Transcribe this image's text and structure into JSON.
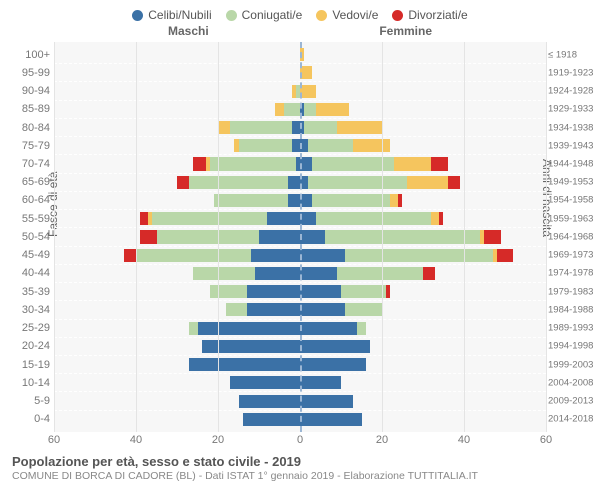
{
  "legend": {
    "items": [
      {
        "label": "Celibi/Nubili",
        "color": "#3b71a6"
      },
      {
        "label": "Coniugati/e",
        "color": "#b9d7a8"
      },
      {
        "label": "Vedovi/e",
        "color": "#f5c55e"
      },
      {
        "label": "Divorziati/e",
        "color": "#d62a28"
      }
    ]
  },
  "headers": {
    "male": "Maschi",
    "female": "Femmine"
  },
  "axis": {
    "left_title": "Fasce di età",
    "right_title": "Anni di nascita",
    "max": 60,
    "ticks": [
      60,
      40,
      20,
      0,
      20,
      40,
      60
    ]
  },
  "colors": {
    "single": "#3b71a6",
    "married": "#b9d7a8",
    "widowed": "#f5c55e",
    "divorced": "#d62a28",
    "plot_bg": "#f7f7f7",
    "grid": "#e4e4e4",
    "row_dash": "#ffffff",
    "center_dash": "#9bb6d4"
  },
  "title": "Popolazione per età, sesso e stato civile - 2019",
  "subtitle": "COMUNE DI BORCA DI CADORE (BL) - Dati ISTAT 1° gennaio 2019 - Elaborazione TUTTITALIA.IT",
  "rows": [
    {
      "age": "100+",
      "birth": "≤ 1918",
      "m": {
        "s": 0,
        "c": 0,
        "w": 0,
        "d": 0
      },
      "f": {
        "s": 0,
        "c": 0,
        "w": 1,
        "d": 0
      }
    },
    {
      "age": "95-99",
      "birth": "1919-1923",
      "m": {
        "s": 0,
        "c": 0,
        "w": 0,
        "d": 0
      },
      "f": {
        "s": 0,
        "c": 0,
        "w": 3,
        "d": 0
      }
    },
    {
      "age": "90-94",
      "birth": "1924-1928",
      "m": {
        "s": 0,
        "c": 1,
        "w": 1,
        "d": 0
      },
      "f": {
        "s": 0,
        "c": 0,
        "w": 4,
        "d": 0
      }
    },
    {
      "age": "85-89",
      "birth": "1929-1933",
      "m": {
        "s": 0,
        "c": 4,
        "w": 2,
        "d": 0
      },
      "f": {
        "s": 1,
        "c": 3,
        "w": 8,
        "d": 0
      }
    },
    {
      "age": "80-84",
      "birth": "1934-1938",
      "m": {
        "s": 2,
        "c": 15,
        "w": 3,
        "d": 0
      },
      "f": {
        "s": 1,
        "c": 8,
        "w": 11,
        "d": 0
      }
    },
    {
      "age": "75-79",
      "birth": "1939-1943",
      "m": {
        "s": 2,
        "c": 13,
        "w": 1,
        "d": 0
      },
      "f": {
        "s": 2,
        "c": 11,
        "w": 9,
        "d": 0
      }
    },
    {
      "age": "70-74",
      "birth": "1944-1948",
      "m": {
        "s": 1,
        "c": 21,
        "w": 1,
        "d": 3
      },
      "f": {
        "s": 3,
        "c": 20,
        "w": 9,
        "d": 4
      }
    },
    {
      "age": "65-69",
      "birth": "1949-1953",
      "m": {
        "s": 3,
        "c": 24,
        "w": 0,
        "d": 3
      },
      "f": {
        "s": 2,
        "c": 24,
        "w": 10,
        "d": 3
      }
    },
    {
      "age": "60-64",
      "birth": "1954-1958",
      "m": {
        "s": 3,
        "c": 18,
        "w": 0,
        "d": 0
      },
      "f": {
        "s": 3,
        "c": 19,
        "w": 2,
        "d": 1
      }
    },
    {
      "age": "55-59",
      "birth": "1959-1963",
      "m": {
        "s": 8,
        "c": 28,
        "w": 1,
        "d": 2
      },
      "f": {
        "s": 4,
        "c": 28,
        "w": 2,
        "d": 1
      }
    },
    {
      "age": "50-54",
      "birth": "1964-1968",
      "m": {
        "s": 10,
        "c": 25,
        "w": 0,
        "d": 4
      },
      "f": {
        "s": 6,
        "c": 38,
        "w": 1,
        "d": 4
      }
    },
    {
      "age": "45-49",
      "birth": "1969-1973",
      "m": {
        "s": 12,
        "c": 28,
        "w": 0,
        "d": 3
      },
      "f": {
        "s": 11,
        "c": 36,
        "w": 1,
        "d": 4
      }
    },
    {
      "age": "40-44",
      "birth": "1974-1978",
      "m": {
        "s": 11,
        "c": 15,
        "w": 0,
        "d": 0
      },
      "f": {
        "s": 9,
        "c": 21,
        "w": 0,
        "d": 3
      }
    },
    {
      "age": "35-39",
      "birth": "1979-1983",
      "m": {
        "s": 13,
        "c": 9,
        "w": 0,
        "d": 0
      },
      "f": {
        "s": 10,
        "c": 11,
        "w": 0,
        "d": 1
      }
    },
    {
      "age": "30-34",
      "birth": "1984-1988",
      "m": {
        "s": 13,
        "c": 5,
        "w": 0,
        "d": 0
      },
      "f": {
        "s": 11,
        "c": 9,
        "w": 0,
        "d": 0
      }
    },
    {
      "age": "25-29",
      "birth": "1989-1993",
      "m": {
        "s": 25,
        "c": 2,
        "w": 0,
        "d": 0
      },
      "f": {
        "s": 14,
        "c": 2,
        "w": 0,
        "d": 0
      }
    },
    {
      "age": "20-24",
      "birth": "1994-1998",
      "m": {
        "s": 24,
        "c": 0,
        "w": 0,
        "d": 0
      },
      "f": {
        "s": 17,
        "c": 0,
        "w": 0,
        "d": 0
      }
    },
    {
      "age": "15-19",
      "birth": "1999-2003",
      "m": {
        "s": 27,
        "c": 0,
        "w": 0,
        "d": 0
      },
      "f": {
        "s": 16,
        "c": 0,
        "w": 0,
        "d": 0
      }
    },
    {
      "age": "10-14",
      "birth": "2004-2008",
      "m": {
        "s": 17,
        "c": 0,
        "w": 0,
        "d": 0
      },
      "f": {
        "s": 10,
        "c": 0,
        "w": 0,
        "d": 0
      }
    },
    {
      "age": "5-9",
      "birth": "2009-2013",
      "m": {
        "s": 15,
        "c": 0,
        "w": 0,
        "d": 0
      },
      "f": {
        "s": 13,
        "c": 0,
        "w": 0,
        "d": 0
      }
    },
    {
      "age": "0-4",
      "birth": "2014-2018",
      "m": {
        "s": 14,
        "c": 0,
        "w": 0,
        "d": 0
      },
      "f": {
        "s": 15,
        "c": 0,
        "w": 0,
        "d": 0
      }
    }
  ]
}
